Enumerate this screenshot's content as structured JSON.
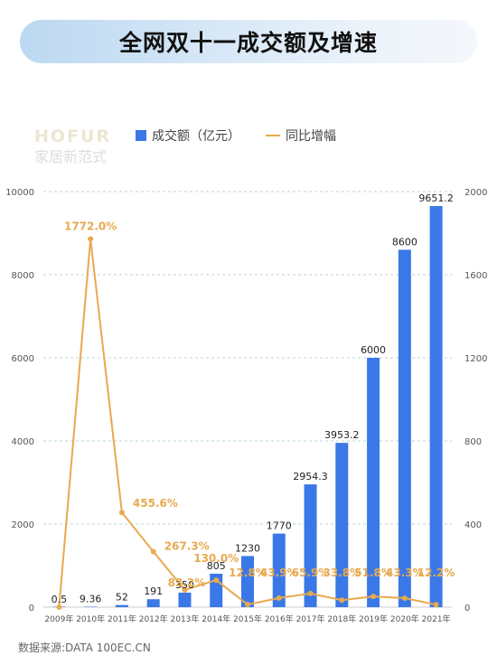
{
  "title": "全网双十一成交额及增速",
  "watermark": {
    "brand": "HOFUR",
    "tagline": "家居新范式"
  },
  "source": "数据来源:DATA 100EC.CN",
  "colors": {
    "bar": "#3b78e7",
    "line": "#e8a94f",
    "label_dark": "#222222"
  },
  "chart_data": {
    "type": "bar",
    "categories": [
      "2009年",
      "2010年",
      "2011年",
      "2012年",
      "2013年",
      "2014年",
      "2015年",
      "2016年",
      "2017年",
      "2018年",
      "2019年",
      "2020年",
      "2021年"
    ],
    "series": [
      {
        "name": "成交额（亿元）",
        "type": "bar",
        "axis": "left",
        "values": [
          0.5,
          9.36,
          52,
          191,
          350,
          805,
          1230,
          1770,
          2954.3,
          3953.2,
          6000,
          8600,
          9651.2
        ],
        "labels": [
          "0.5",
          "9.36",
          "52",
          "191",
          "350",
          "805",
          "1230",
          "1770",
          "2954.3",
          "3953.2",
          "6000",
          "8600",
          "9651.2"
        ]
      },
      {
        "name": "同比增幅",
        "type": "line",
        "axis": "right",
        "values": [
          0,
          1772.0,
          455.6,
          267.3,
          83.2,
          130.0,
          12.8,
          43.9,
          65.9,
          33.8,
          51.8,
          43.3,
          12.2
        ],
        "labels": [
          "",
          "1772.0%",
          "455.6%",
          "267.3%",
          "83.2%",
          "130.0%",
          "12.8%",
          "43.9%",
          "65.9%",
          "33.8%",
          "51.8%",
          "43.3%",
          "12.2%"
        ]
      }
    ],
    "y_left": {
      "min": 0,
      "max": 10000,
      "ticks": [
        0,
        2000,
        4000,
        6000,
        8000,
        10000
      ]
    },
    "y_right": {
      "min": 0,
      "max": 2000,
      "ticks": [
        0,
        400,
        800,
        1200,
        1600,
        2000
      ]
    },
    "grid": true,
    "legend": "top"
  }
}
